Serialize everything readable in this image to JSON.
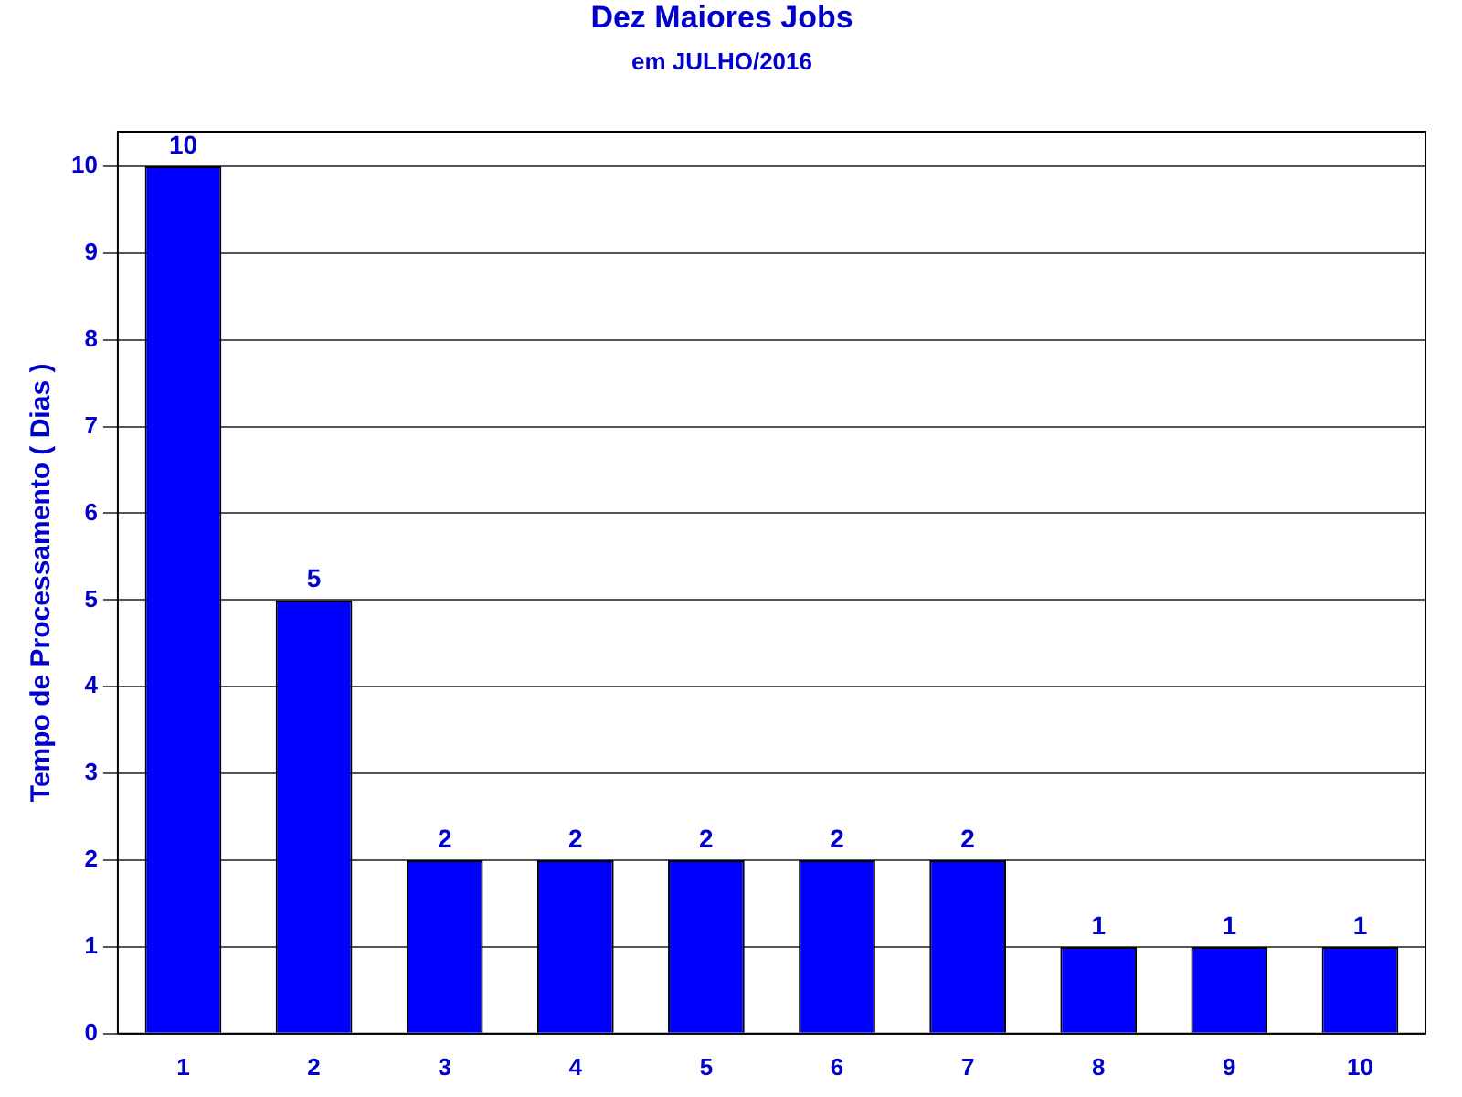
{
  "chart_data": {
    "type": "bar",
    "title": "Dez Maiores Jobs",
    "subtitle": "em JULHO/2016",
    "ylabel": "Tempo de Processamento ( Dias )",
    "categories": [
      "1",
      "2",
      "3",
      "4",
      "5",
      "6",
      "7",
      "8",
      "9",
      "10"
    ],
    "values": [
      10,
      5,
      2,
      2,
      2,
      2,
      2,
      1,
      1,
      1
    ],
    "color": "#0000ff",
    "ylim": [
      0,
      10.4
    ],
    "yticks": [
      0,
      1,
      2,
      3,
      4,
      5,
      6,
      7,
      8,
      9,
      10
    ],
    "grid": "y",
    "data_labels": true,
    "legend": false
  }
}
